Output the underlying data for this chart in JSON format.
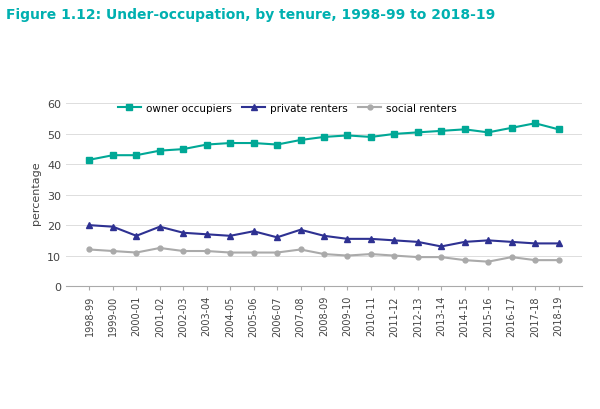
{
  "title": "Figure 1.12: Under-occupation, by tenure, 1998-99 to 2018-19",
  "title_color": "#00B0B0",
  "ylabel": "percentage",
  "ylim": [
    0,
    62
  ],
  "yticks": [
    0,
    10,
    20,
    30,
    40,
    50,
    60
  ],
  "categories": [
    "1998-99",
    "1999-00",
    "2000-01",
    "2001-02",
    "2002-03",
    "2003-04",
    "2004-05",
    "2005-06",
    "2006-07",
    "2007-08",
    "2008-09",
    "2009-10",
    "2010-11",
    "2011-12",
    "2012-13",
    "2013-14",
    "2014-15",
    "2015-16",
    "2016-17",
    "2017-18",
    "2018-19"
  ],
  "owner_occupiers": [
    41.5,
    43.0,
    43.0,
    44.5,
    45.0,
    46.5,
    47.0,
    47.0,
    46.5,
    48.0,
    49.0,
    49.5,
    49.0,
    50.0,
    50.5,
    51.0,
    51.5,
    50.5,
    52.0,
    53.5,
    51.5
  ],
  "private_renters": [
    20.0,
    19.5,
    16.5,
    19.5,
    17.5,
    17.0,
    16.5,
    18.0,
    16.0,
    18.5,
    16.5,
    15.5,
    15.5,
    15.0,
    14.5,
    13.0,
    14.5,
    15.0,
    14.5,
    14.0,
    14.0
  ],
  "social_renters": [
    12.0,
    11.5,
    11.0,
    12.5,
    11.5,
    11.5,
    11.0,
    11.0,
    11.0,
    12.0,
    10.5,
    10.0,
    10.5,
    10.0,
    9.5,
    9.5,
    8.5,
    8.0,
    9.5,
    8.5,
    8.5
  ],
  "owner_color": "#00A896",
  "private_color": "#2E3192",
  "social_color": "#AAAAAA",
  "bg_color": "#FFFFFF",
  "legend_labels": [
    "owner occupiers",
    "private renters",
    "social renters"
  ],
  "figsize": [
    6.0,
    4.1
  ],
  "dpi": 100
}
